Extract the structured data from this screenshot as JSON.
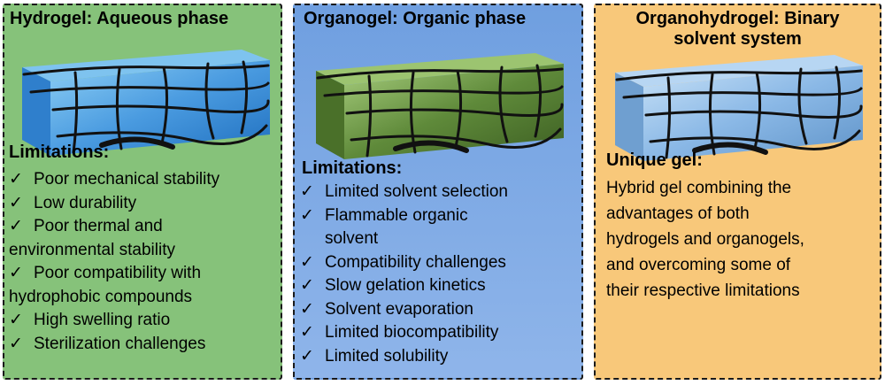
{
  "panels": [
    {
      "title": "Hydrogel: Aqueous phase",
      "heading": "Limitations:",
      "items": [
        {
          "line1": "Poor mechanical stability"
        },
        {
          "line1": "Low durability"
        },
        {
          "line1": "Poor thermal and",
          "line2": "environmental stability"
        },
        {
          "line1": "Poor compatibility with",
          "line2": "hydrophobic compounds"
        },
        {
          "line1": "High swelling ratio"
        },
        {
          "line1": "Sterilization challenges"
        }
      ],
      "gel_colors": {
        "base": "#4a9be0",
        "light": "#8fd0f5",
        "dark": "#1f6fbf"
      }
    },
    {
      "title": "Organogel: Organic phase",
      "heading": "Limitations:",
      "items": [
        {
          "line1": "Limited solvent selection"
        },
        {
          "line1": "Flammable organic",
          "line2": "solvent"
        },
        {
          "line1": "Compatibility challenges"
        },
        {
          "line1": "Slow gelation kinetics"
        },
        {
          "line1": "Solvent evaporation"
        },
        {
          "line1": "Limited biocompatibility"
        },
        {
          "line1": "Limited solubility"
        }
      ],
      "gel_colors": {
        "base": "#5f8a3a",
        "light": "#a9cf7f",
        "dark": "#3c5e22"
      }
    },
    {
      "title_line1": "Organohydrogel: Binary",
      "title_line2": "solvent system",
      "heading": "Unique gel:",
      "paragraph_lines": [
        "Hybrid gel combining the",
        "advantages of both",
        "hydrogels and organogels,",
        "and overcoming some of",
        "their respective limitations"
      ],
      "gel_colors": {
        "base": "#8ab8e6",
        "light": "#c9e2f7",
        "dark": "#5f93c8"
      }
    }
  ],
  "check_glyph": "✓",
  "panel_colors": {
    "hydrogel": "#86c27a",
    "organogel": "#7aa7e4",
    "organohydrogel": "#f8c87a"
  }
}
